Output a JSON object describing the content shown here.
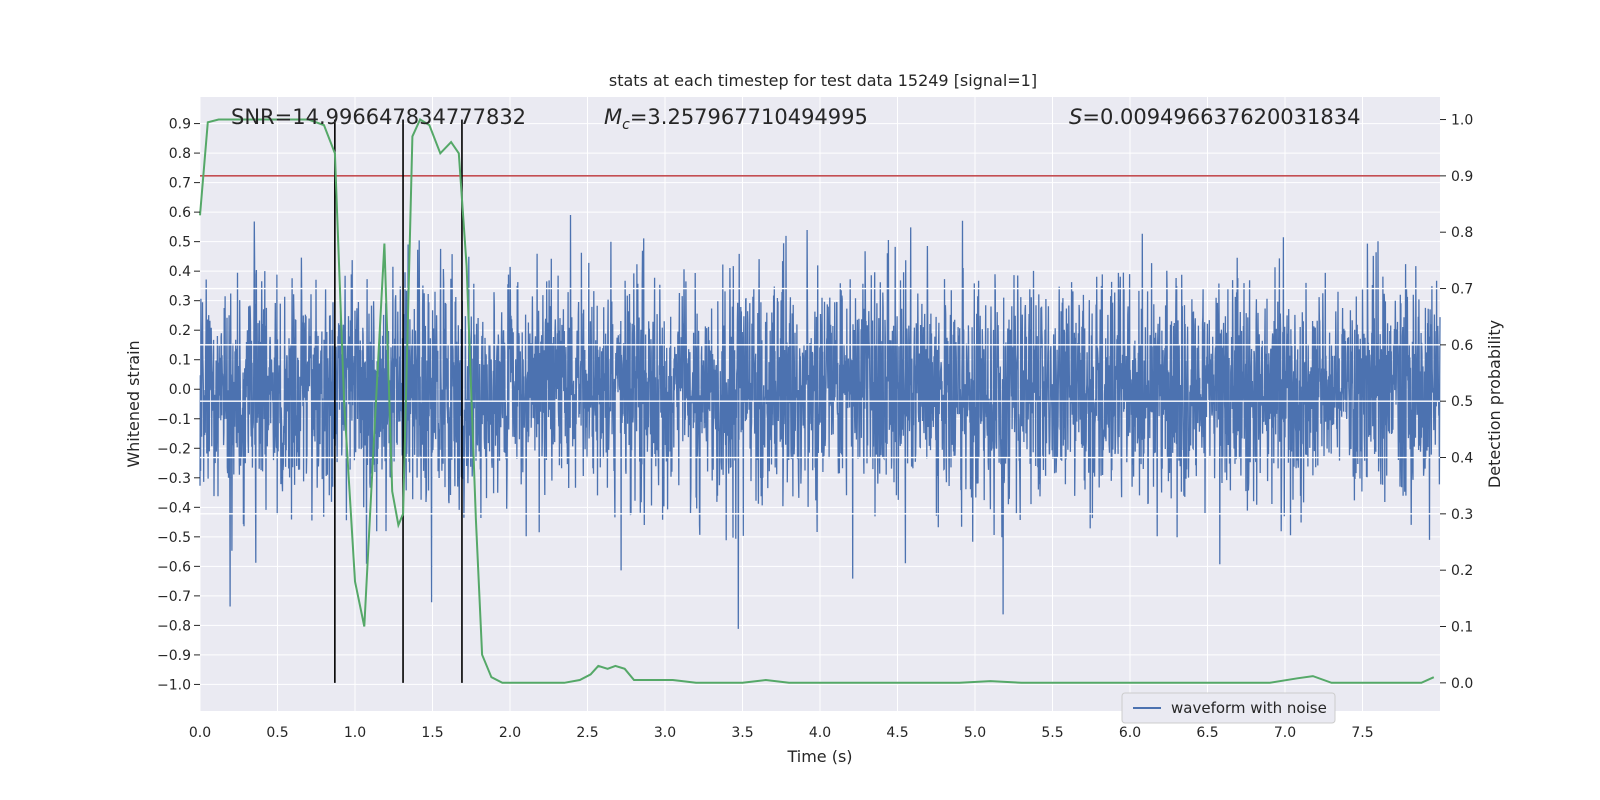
{
  "chart_data": {
    "type": "line",
    "title": "stats at each timestep for test data 15249 [signal=1]",
    "xlabel": "Time (s)",
    "ylabel": "Whitened strain",
    "y2label": "Detection probability",
    "xlim": [
      0,
      8
    ],
    "ylim": [
      -1.09,
      0.99
    ],
    "y2lim": [
      -0.05,
      1.04
    ],
    "xticks": [
      0.0,
      0.5,
      1.0,
      1.5,
      2.0,
      2.5,
      3.0,
      3.5,
      4.0,
      4.5,
      5.0,
      5.5,
      6.0,
      6.5,
      7.0,
      7.5
    ],
    "xtick_labels": [
      "0.0",
      "0.5",
      "1.0",
      "1.5",
      "2.0",
      "2.5",
      "3.0",
      "3.5",
      "4.0",
      "4.5",
      "5.0",
      "5.5",
      "6.0",
      "6.5",
      "7.0",
      "7.5"
    ],
    "yticks": [
      0.9,
      0.8,
      0.7,
      0.6,
      0.5,
      0.4,
      0.3,
      0.2,
      0.1,
      0.0,
      -0.1,
      -0.2,
      -0.3,
      -0.4,
      -0.5,
      -0.6,
      -0.7,
      -0.8,
      -0.9,
      -1.0
    ],
    "ytick_labels": [
      "0.9",
      "0.8",
      "0.7",
      "0.6",
      "0.5",
      "0.4",
      "0.3",
      "0.2",
      "0.1",
      "0.0",
      "−0.1",
      "−0.2",
      "−0.3",
      "−0.4",
      "−0.5",
      "−0.6",
      "−0.7",
      "−0.8",
      "−0.9",
      "−1.0"
    ],
    "y2ticks": [
      1.0,
      0.9,
      0.8,
      0.7,
      0.6,
      0.5,
      0.4,
      0.3,
      0.2,
      0.1,
      0.0
    ],
    "y2tick_labels": [
      "1.0",
      "0.9",
      "0.8",
      "0.7",
      "0.6",
      "0.5",
      "0.4",
      "0.3",
      "0.2",
      "0.1",
      "0.0"
    ],
    "annotations": {
      "snr": "SNR=14.996647834777832",
      "mc_symbol": "M",
      "mc_sub": "c",
      "mc_value": "=3.257967710494995",
      "s_symbol": "S",
      "s_value": "=0.009496637620031834"
    },
    "legend": {
      "label": "waveform with noise",
      "position": "lower-right"
    },
    "threshold_prob": 0.9,
    "vertical_lines_x": [
      0.87,
      1.31,
      1.69
    ],
    "series": [
      {
        "name": "waveform with noise",
        "color": "#4c72b0",
        "noise_core_std": 0.19,
        "noise_envelope_p": 0.5
      },
      {
        "name": "detection probability",
        "color": "#55a868",
        "x": [
          0.0,
          0.05,
          0.12,
          0.2,
          0.3,
          0.4,
          0.5,
          0.6,
          0.7,
          0.8,
          0.87,
          0.93,
          1.0,
          1.06,
          1.12,
          1.19,
          1.24,
          1.28,
          1.31,
          1.37,
          1.42,
          1.48,
          1.55,
          1.62,
          1.67,
          1.72,
          1.78,
          1.82,
          1.88,
          1.95,
          2.05,
          2.2,
          2.35,
          2.45,
          2.52,
          2.57,
          2.63,
          2.68,
          2.74,
          2.8,
          2.88,
          2.95,
          3.05,
          3.2,
          3.35,
          3.5,
          3.65,
          3.8,
          3.95,
          4.1,
          4.3,
          4.5,
          4.7,
          4.9,
          5.1,
          5.3,
          5.5,
          5.7,
          5.9,
          6.1,
          6.3,
          6.5,
          6.7,
          6.9,
          7.08,
          7.18,
          7.3,
          7.5,
          7.7,
          7.88,
          7.96
        ],
        "values": [
          0.83,
          0.995,
          1.0,
          1.0,
          1.0,
          1.0,
          1.0,
          1.0,
          1.0,
          0.99,
          0.94,
          0.5,
          0.18,
          0.1,
          0.42,
          0.78,
          0.34,
          0.28,
          0.3,
          0.97,
          1.0,
          0.99,
          0.94,
          0.96,
          0.94,
          0.74,
          0.29,
          0.05,
          0.01,
          0.0,
          0.0,
          0.0,
          0.0,
          0.005,
          0.015,
          0.03,
          0.025,
          0.03,
          0.025,
          0.005,
          0.005,
          0.005,
          0.005,
          0.0,
          0.0,
          0.0,
          0.005,
          0.0,
          0.0,
          0.0,
          0.0,
          0.0,
          0.0,
          0.0,
          0.003,
          0.0,
          0.0,
          0.0,
          0.0,
          0.0,
          0.0,
          0.0,
          0.0,
          0.0,
          0.008,
          0.012,
          0.0,
          0.0,
          0.0,
          0.0,
          0.01
        ]
      }
    ]
  }
}
